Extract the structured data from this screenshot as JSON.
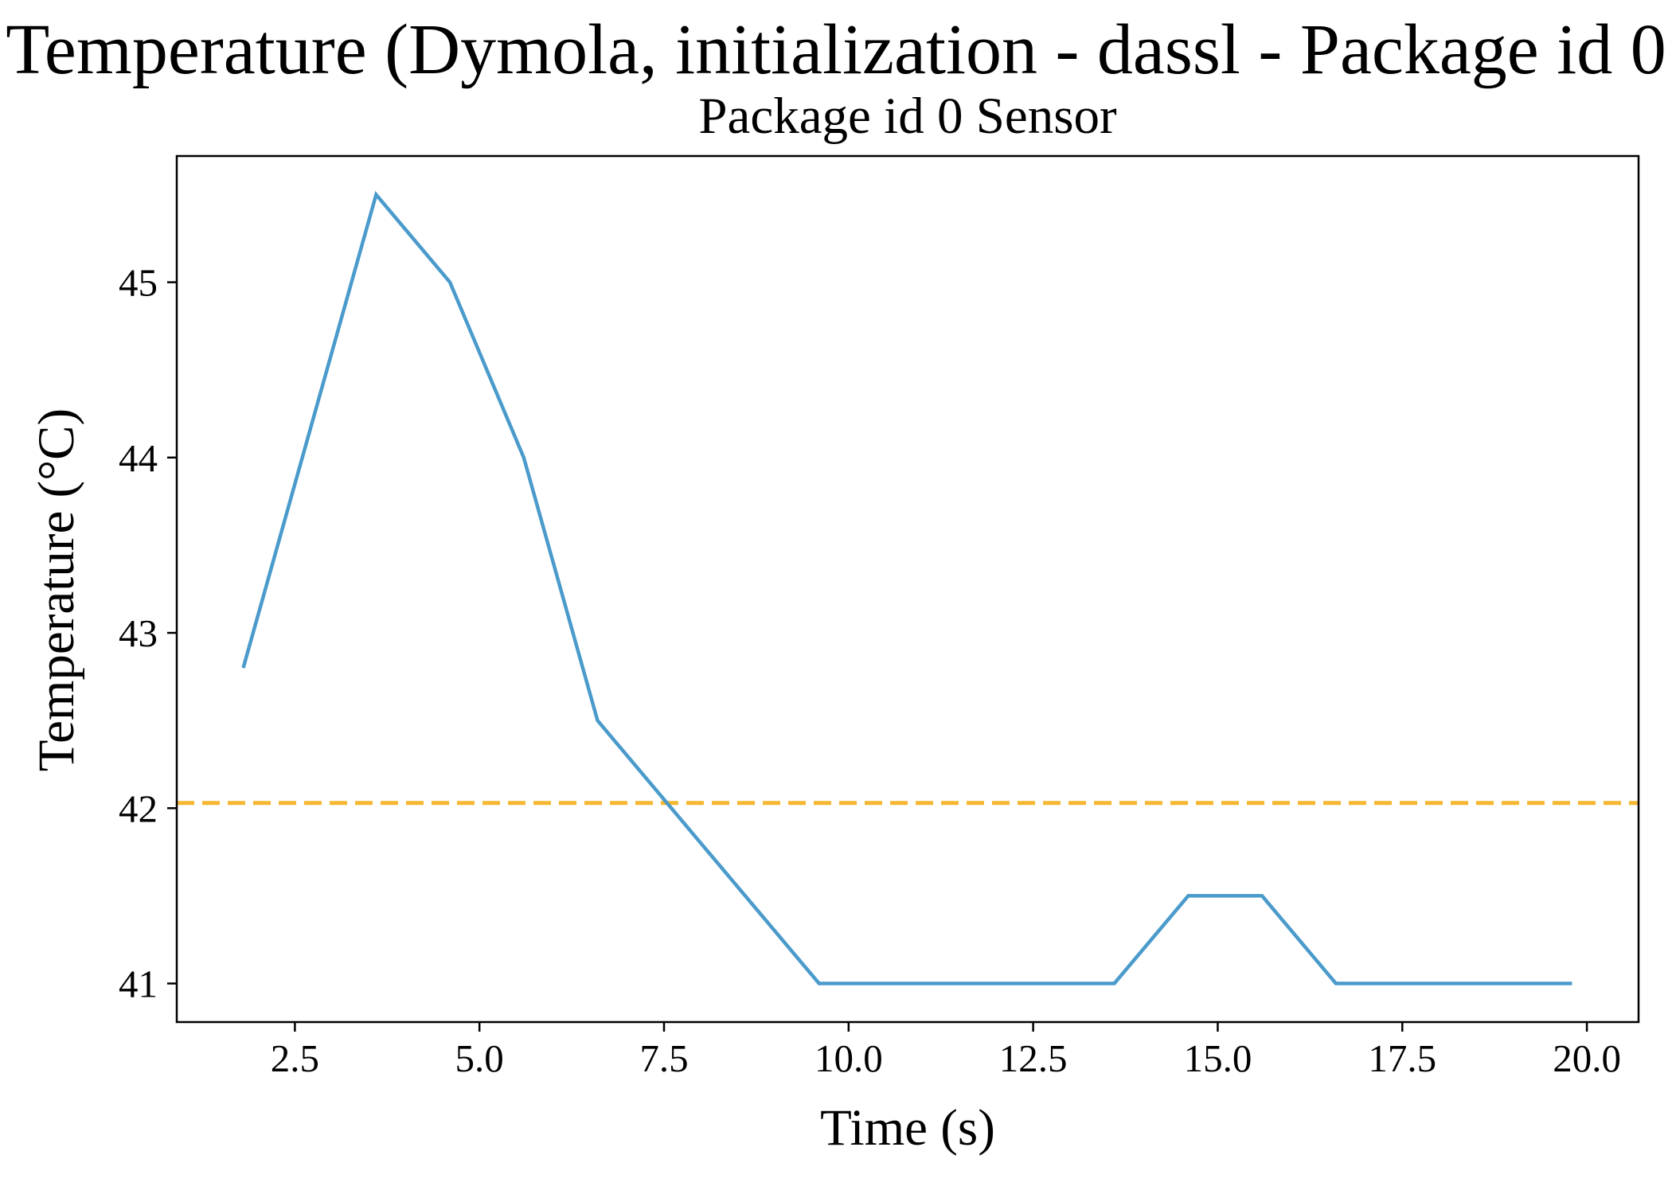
{
  "chart_data": {
    "type": "line",
    "suptitle": "Temperature (Dymola, initialization - dassl - Package id 0",
    "title": "Package id 0 Sensor",
    "xlabel": "Time (s)",
    "ylabel": "Temperature (°C)",
    "xlim": [
      0.9,
      20.7
    ],
    "ylim": [
      40.78,
      45.72
    ],
    "xticks": [
      2.5,
      5.0,
      7.5,
      10.0,
      12.5,
      15.0,
      17.5,
      20.0
    ],
    "xtick_labels": [
      "2.5",
      "5.0",
      "7.5",
      "10.0",
      "12.5",
      "15.0",
      "17.5",
      "20.0"
    ],
    "yticks": [
      41,
      42,
      43,
      44,
      45
    ],
    "ytick_labels": [
      "41",
      "42",
      "43",
      "44",
      "45"
    ],
    "series": [
      {
        "name": "Package id 0 Sensor",
        "color": "#4a9bcb",
        "style": "solid",
        "x": [
          1.8,
          3.6,
          4.6,
          5.6,
          6.6,
          9.6,
          13.6,
          14.6,
          15.6,
          16.6,
          19.8
        ],
        "y": [
          42.8,
          45.5,
          45.0,
          44.0,
          42.5,
          41.0,
          41.0,
          41.5,
          41.5,
          41.0,
          41.0
        ]
      }
    ],
    "reference_lines": [
      {
        "orientation": "horizontal",
        "value": 42.03,
        "color": "#f5b731",
        "style": "dashed"
      }
    ],
    "grid": false,
    "legend": "none"
  }
}
